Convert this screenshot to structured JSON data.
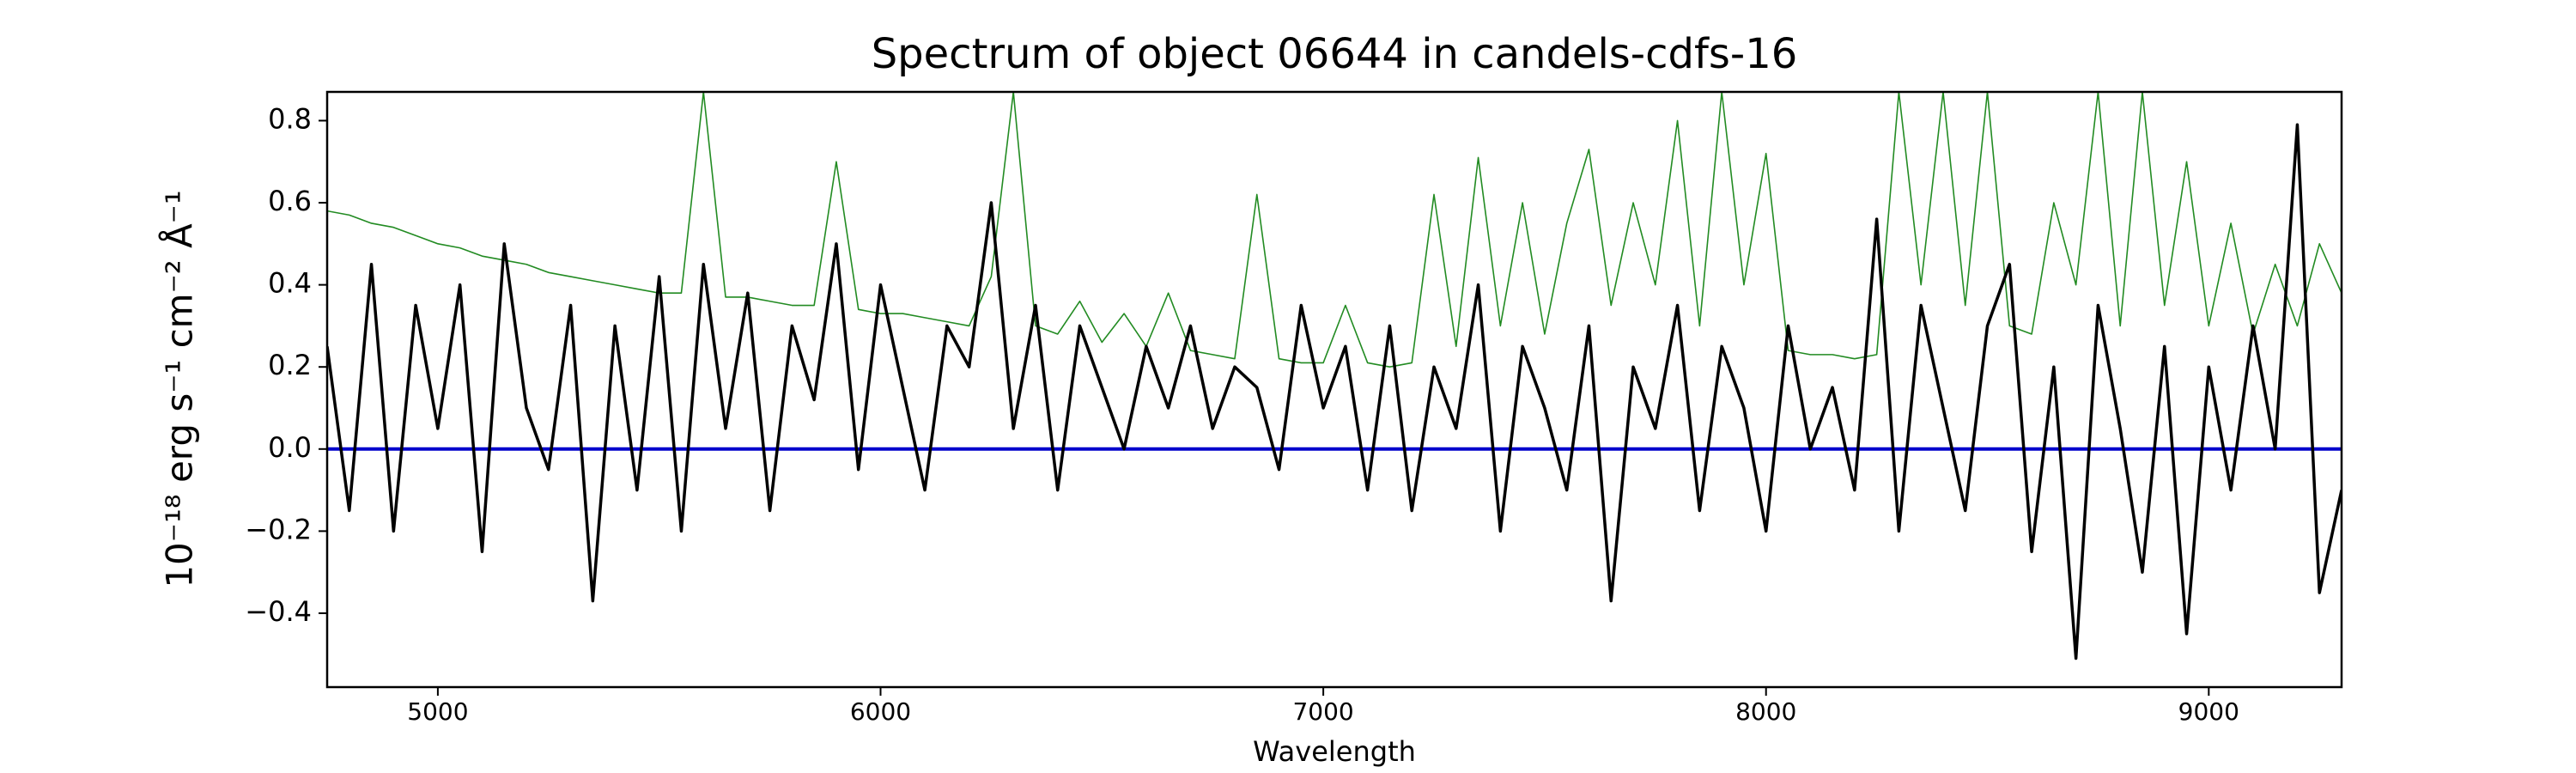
{
  "chart_data": {
    "type": "line",
    "title": "Spectrum of object 06644 in candels-cdfs-16",
    "xlabel": "Wavelength",
    "ylabel": "10⁻¹⁸ erg s⁻¹ cm⁻² Å⁻¹",
    "xlim": [
      4750,
      9300
    ],
    "ylim": [
      -0.58,
      0.87
    ],
    "xticks": [
      5000,
      6000,
      7000,
      8000,
      9000
    ],
    "yticks": [
      {
        "value": -0.4,
        "label": "−0.4"
      },
      {
        "value": -0.2,
        "label": "−0.2"
      },
      {
        "value": 0,
        "label": "0.0"
      },
      0.2,
      0.4,
      0.6,
      0.8
    ],
    "grid": false,
    "series": [
      {
        "color": "#228b22",
        "width": 1.6,
        "x": [
          4750,
          4800,
          4850,
          4900,
          4950,
          5000,
          5050,
          5100,
          5150,
          5200,
          5250,
          5300,
          5350,
          5400,
          5450,
          5500,
          5550,
          5600,
          5650,
          5700,
          5750,
          5800,
          5850,
          5900,
          5950,
          6000,
          6050,
          6100,
          6150,
          6200,
          6250,
          6300,
          6350,
          6400,
          6450,
          6500,
          6550,
          6600,
          6650,
          6700,
          6750,
          6800,
          6850,
          6900,
          6950,
          7000,
          7050,
          7100,
          7150,
          7200,
          7250,
          7300,
          7350,
          7400,
          7450,
          7500,
          7550,
          7600,
          7650,
          7700,
          7750,
          7800,
          7850,
          7900,
          7950,
          8000,
          8050,
          8100,
          8150,
          8200,
          8250,
          8300,
          8350,
          8400,
          8450,
          8500,
          8550,
          8600,
          8650,
          8700,
          8750,
          8800,
          8850,
          8900,
          8950,
          9000,
          9050,
          9100,
          9150,
          9200,
          9250,
          9300
        ],
        "values": [
          0.58,
          0.57,
          0.55,
          0.54,
          0.52,
          0.5,
          0.49,
          0.47,
          0.46,
          0.45,
          0.43,
          0.42,
          0.41,
          0.4,
          0.39,
          0.38,
          0.38,
          0.87,
          0.37,
          0.37,
          0.36,
          0.35,
          0.35,
          0.7,
          0.34,
          0.33,
          0.33,
          0.32,
          0.31,
          0.3,
          0.42,
          0.87,
          0.3,
          0.28,
          0.36,
          0.26,
          0.33,
          0.25,
          0.38,
          0.24,
          0.23,
          0.22,
          0.62,
          0.22,
          0.21,
          0.21,
          0.35,
          0.21,
          0.2,
          0.21,
          0.62,
          0.25,
          0.71,
          0.3,
          0.6,
          0.28,
          0.55,
          0.73,
          0.35,
          0.6,
          0.4,
          0.8,
          0.3,
          0.87,
          0.4,
          0.72,
          0.24,
          0.23,
          0.23,
          0.22,
          0.23,
          0.87,
          0.4,
          0.87,
          0.35,
          0.87,
          0.3,
          0.28,
          0.6,
          0.4,
          0.87,
          0.3,
          0.87,
          0.35,
          0.7,
          0.3,
          0.55,
          0.28,
          0.45,
          0.3,
          0.5,
          0.38
        ]
      },
      {
        "color": "#0000cc",
        "width": 4,
        "x": [
          4750,
          9300
        ],
        "values": [
          0,
          0
        ]
      },
      {
        "color": "#000000",
        "width": 3.5,
        "x": [
          4750,
          4800,
          4850,
          4900,
          4950,
          5000,
          5050,
          5100,
          5150,
          5200,
          5250,
          5300,
          5350,
          5400,
          5450,
          5500,
          5550,
          5600,
          5650,
          5700,
          5750,
          5800,
          5850,
          5900,
          5950,
          6000,
          6050,
          6100,
          6150,
          6200,
          6250,
          6300,
          6350,
          6400,
          6450,
          6500,
          6550,
          6600,
          6650,
          6700,
          6750,
          6800,
          6850,
          6900,
          6950,
          7000,
          7050,
          7100,
          7150,
          7200,
          7250,
          7300,
          7350,
          7400,
          7450,
          7500,
          7550,
          7600,
          7650,
          7700,
          7750,
          7800,
          7850,
          7900,
          7950,
          8000,
          8050,
          8100,
          8150,
          8200,
          8250,
          8300,
          8350,
          8400,
          8450,
          8500,
          8550,
          8600,
          8650,
          8700,
          8750,
          8800,
          8850,
          8900,
          8950,
          9000,
          9050,
          9100,
          9150,
          9200,
          9250,
          9300
        ],
        "values": [
          0.25,
          -0.15,
          0.45,
          -0.2,
          0.35,
          0.05,
          0.4,
          -0.25,
          0.5,
          0.1,
          -0.05,
          0.35,
          -0.37,
          0.3,
          -0.1,
          0.42,
          -0.2,
          0.45,
          0.05,
          0.38,
          -0.15,
          0.3,
          0.12,
          0.5,
          -0.05,
          0.4,
          0.15,
          -0.1,
          0.3,
          0.2,
          0.6,
          0.05,
          0.35,
          -0.1,
          0.3,
          0.15,
          0.0,
          0.25,
          0.1,
          0.3,
          0.05,
          0.2,
          0.15,
          -0.05,
          0.35,
          0.1,
          0.25,
          -0.1,
          0.3,
          -0.15,
          0.2,
          0.05,
          0.4,
          -0.2,
          0.25,
          0.1,
          -0.1,
          0.3,
          -0.37,
          0.2,
          0.05,
          0.35,
          -0.15,
          0.25,
          0.1,
          -0.2,
          0.3,
          0.0,
          0.15,
          -0.1,
          0.56,
          -0.2,
          0.35,
          0.1,
          -0.15,
          0.3,
          0.45,
          -0.25,
          0.2,
          -0.51,
          0.35,
          0.05,
          -0.3,
          0.25,
          -0.45,
          0.2,
          -0.1,
          0.3,
          0.0,
          0.79,
          -0.35,
          -0.1
        ]
      }
    ]
  }
}
